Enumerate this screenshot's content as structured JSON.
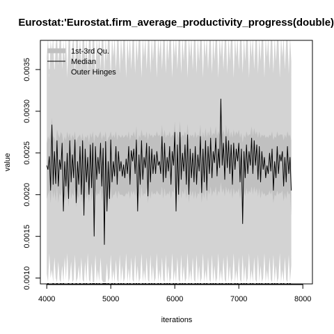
{
  "chart_data": {
    "type": "line",
    "title": "Eurostat:'Eurostat.firm_average_productivity_progress(double)'",
    "xlabel": "iterations",
    "ylabel": "value",
    "xlim": [
      3900,
      8150
    ],
    "ylim": [
      0.00093,
      0.00385
    ],
    "x_ticks": [
      4000,
      5000,
      6000,
      7000,
      8000
    ],
    "x_tick_labels": [
      "4000",
      "5000",
      "6000",
      "7000",
      "8000"
    ],
    "y_ticks": [
      0.001,
      0.0015,
      0.002,
      0.0025,
      0.003,
      0.0035
    ],
    "y_tick_labels": [
      "0.0010",
      "0.0015",
      "0.0020",
      "0.0025",
      "0.0030",
      "0.0035"
    ],
    "x_start": 4000,
    "x_step": 20,
    "legend": {
      "position": "top-left",
      "entries": [
        {
          "label": "1st-3rd Qu.",
          "color": "#c0c0c0",
          "style": "thick-band"
        },
        {
          "label": "Median",
          "color": "#000000",
          "style": "line"
        },
        {
          "label": "Outer Hinges",
          "color": "#d3d3d3",
          "style": "thick-band"
        }
      ]
    },
    "colors": {
      "outer_hinges": "#d3d3d3",
      "quartile_band": "#c0c0c0",
      "median": "#000000",
      "min_marks": "#000000"
    },
    "series": [
      {
        "name": "Median",
        "values": [
          0.00235,
          0.0023,
          0.00246,
          0.00205,
          0.00284,
          0.00212,
          0.00252,
          0.00213,
          0.00265,
          0.0021,
          0.00242,
          0.0023,
          0.00262,
          0.0018,
          0.0024,
          0.0021,
          0.0025,
          0.00195,
          0.00265,
          0.00215,
          0.00248,
          0.0022,
          0.00266,
          0.0019,
          0.0024,
          0.00212,
          0.00258,
          0.002,
          0.00265,
          0.00175,
          0.00255,
          0.00215,
          0.00245,
          0.002,
          0.0026,
          0.00208,
          0.00262,
          0.0015,
          0.00258,
          0.00218,
          0.00245,
          0.00225,
          0.00262,
          0.0021,
          0.00256,
          0.0014,
          0.00264,
          0.0018,
          0.0024,
          0.00195,
          0.00266,
          0.00215,
          0.0024,
          0.00222,
          0.00258,
          0.00212,
          0.00252,
          0.00228,
          0.0024,
          0.00222,
          0.00236,
          0.0022,
          0.00243,
          0.00225,
          0.00258,
          0.00212,
          0.00253,
          0.0024,
          0.00255,
          0.00225,
          0.00266,
          0.0018,
          0.00248,
          0.00212,
          0.00265,
          0.00218,
          0.00245,
          0.00232,
          0.00262,
          0.00198,
          0.00258,
          0.00215,
          0.00255,
          0.00225,
          0.00248,
          0.00225,
          0.00252,
          0.00235,
          0.0024,
          0.00225,
          0.0027,
          0.00215,
          0.00262,
          0.0022,
          0.00245,
          0.00228,
          0.00258,
          0.00212,
          0.00252,
          0.00235,
          0.00275,
          0.0018,
          0.0026,
          0.002,
          0.00275,
          0.00218,
          0.0025,
          0.00228,
          0.0026,
          0.00212,
          0.00272,
          0.002,
          0.00255,
          0.0022,
          0.0025,
          0.00215,
          0.00258,
          0.00212,
          0.00248,
          0.00228,
          0.0027,
          0.00202,
          0.00255,
          0.00215,
          0.00265,
          0.00205,
          0.00258,
          0.00225,
          0.00268,
          0.0022,
          0.00252,
          0.00238,
          0.00268,
          0.00222,
          0.00255,
          0.00232,
          0.00315,
          0.00235,
          0.00262,
          0.00218,
          0.0027,
          0.00232,
          0.00265,
          0.00225,
          0.0026,
          0.00212,
          0.00262,
          0.0023,
          0.00255,
          0.0024,
          0.00262,
          0.00215,
          0.00255,
          0.00165,
          0.00252,
          0.0022,
          0.0026,
          0.00225,
          0.00252,
          0.00235,
          0.00268,
          0.00225,
          0.00265,
          0.00235,
          0.0026,
          0.00218,
          0.00258,
          0.00215,
          0.00252,
          0.0023,
          0.00245,
          0.0022,
          0.00235,
          0.00225,
          0.0025,
          0.00228,
          0.00255,
          0.00205,
          0.0024,
          0.0022,
          0.00258,
          0.00225,
          0.00248,
          0.0024,
          0.00252,
          0.0021,
          0.00245,
          0.00215,
          0.00258,
          0.00225,
          0.00245,
          0.00205
        ]
      },
      {
        "name": "1st-3rd Qu. upper",
        "values": [
          0.00262,
          0.0027,
          0.00266,
          0.00275,
          0.00292,
          0.0027,
          0.00268,
          0.00262,
          0.00278,
          0.00272,
          0.00268,
          0.00275,
          0.00272,
          0.00262,
          0.0027,
          0.00265,
          0.00276,
          0.00268,
          0.00274,
          0.00265,
          0.00272,
          0.00268,
          0.00276,
          0.00262,
          0.00268,
          0.0027,
          0.00272,
          0.00265,
          0.00274,
          0.00262,
          0.0027,
          0.00268,
          0.00272,
          0.00262,
          0.00274,
          0.00268,
          0.00276,
          0.00262,
          0.00272,
          0.0027,
          0.00268,
          0.00272,
          0.00276,
          0.00265,
          0.00272,
          0.00268,
          0.00276,
          0.00262,
          0.00268,
          0.0027,
          0.00276,
          0.00268,
          0.00272,
          0.00268,
          0.00276,
          0.00265,
          0.00272,
          0.0027,
          0.00268,
          0.00272,
          0.00268,
          0.0027,
          0.00272,
          0.00268,
          0.00276,
          0.00265,
          0.00272,
          0.0027,
          0.00276,
          0.00268,
          0.00282,
          0.00262,
          0.00272,
          0.00268,
          0.00278,
          0.0027,
          0.00272,
          0.00268,
          0.00276,
          0.00265,
          0.00274,
          0.0027,
          0.00272,
          0.00268,
          0.00272,
          0.0027,
          0.00276,
          0.0027,
          0.00272,
          0.00268,
          0.00284,
          0.00268,
          0.00278,
          0.00268,
          0.00272,
          0.0027,
          0.00276,
          0.00268,
          0.00272,
          0.0027,
          0.00288,
          0.00262,
          0.00276,
          0.00268,
          0.00288,
          0.00268,
          0.00272,
          0.0027,
          0.00276,
          0.00268,
          0.00285,
          0.00265,
          0.00272,
          0.0027,
          0.00272,
          0.00268,
          0.00276,
          0.00268,
          0.00272,
          0.0027,
          0.00284,
          0.00265,
          0.00276,
          0.00268,
          0.0028,
          0.00268,
          0.00276,
          0.0027,
          0.00282,
          0.0027,
          0.00274,
          0.00272,
          0.00282,
          0.0027,
          0.00276,
          0.00272,
          0.003,
          0.00272,
          0.00278,
          0.00268,
          0.00284,
          0.00272,
          0.0028,
          0.00268,
          0.00276,
          0.00268,
          0.00278,
          0.0027,
          0.00276,
          0.00272,
          0.00278,
          0.00268,
          0.00274,
          0.00262,
          0.00272,
          0.00268,
          0.00276,
          0.0027,
          0.00272,
          0.00272,
          0.00282,
          0.0027,
          0.0028,
          0.00272,
          0.00276,
          0.00268,
          0.00276,
          0.00268,
          0.00272,
          0.0027,
          0.00272,
          0.00268,
          0.0027,
          0.00268,
          0.00272,
          0.0027,
          0.00276,
          0.00265,
          0.0027,
          0.00268,
          0.00276,
          0.0027,
          0.00272,
          0.00272,
          0.00272,
          0.00265,
          0.00272,
          0.00268,
          0.00276,
          0.0027,
          0.00272,
          0.00265
        ]
      },
      {
        "name": "1st-3rd Qu. lower",
        "values": [
          0.00195,
          0.002,
          0.00205,
          0.0019,
          0.0021,
          0.00195,
          0.00205,
          0.00192,
          0.0021,
          0.0019,
          0.00202,
          0.00198,
          0.00208,
          0.0018,
          0.002,
          0.00192,
          0.00205,
          0.00185,
          0.0021,
          0.00195,
          0.00202,
          0.00198,
          0.0021,
          0.00185,
          0.002,
          0.00195,
          0.00205,
          0.0019,
          0.0021,
          0.00175,
          0.00205,
          0.00195,
          0.00202,
          0.0019,
          0.00208,
          0.00192,
          0.00208,
          0.0016,
          0.00205,
          0.00198,
          0.00202,
          0.002,
          0.00208,
          0.00192,
          0.00205,
          0.0015,
          0.00208,
          0.0018,
          0.002,
          0.00188,
          0.0021,
          0.00195,
          0.002,
          0.002,
          0.00205,
          0.00195,
          0.00205,
          0.002,
          0.002,
          0.002,
          0.00198,
          0.00198,
          0.00202,
          0.002,
          0.00205,
          0.00195,
          0.00205,
          0.002,
          0.00205,
          0.00198,
          0.0021,
          0.0018,
          0.00202,
          0.00195,
          0.0021,
          0.00198,
          0.00202,
          0.002,
          0.00208,
          0.0019,
          0.00205,
          0.00195,
          0.00205,
          0.002,
          0.00202,
          0.002,
          0.00205,
          0.00202,
          0.002,
          0.002,
          0.0021,
          0.00195,
          0.00208,
          0.00198,
          0.00202,
          0.002,
          0.00205,
          0.00195,
          0.00205,
          0.00202,
          0.00212,
          0.0018,
          0.00208,
          0.0019,
          0.00212,
          0.00195,
          0.00205,
          0.002,
          0.00208,
          0.00195,
          0.0021,
          0.0019,
          0.00205,
          0.00198,
          0.00205,
          0.00195,
          0.00205,
          0.00195,
          0.00202,
          0.002,
          0.0021,
          0.0019,
          0.00205,
          0.00195,
          0.0021,
          0.00192,
          0.00205,
          0.002,
          0.0021,
          0.00198,
          0.00205,
          0.00202,
          0.0021,
          0.00198,
          0.00205,
          0.00202,
          0.00215,
          0.00202,
          0.00208,
          0.00198,
          0.0021,
          0.00202,
          0.00208,
          0.002,
          0.00208,
          0.00195,
          0.00208,
          0.002,
          0.00205,
          0.00202,
          0.00208,
          0.00195,
          0.00205,
          0.0017,
          0.00205,
          0.00198,
          0.00208,
          0.002,
          0.00205,
          0.00202,
          0.0021,
          0.002,
          0.0021,
          0.00202,
          0.00208,
          0.00198,
          0.00208,
          0.00195,
          0.00205,
          0.002,
          0.00202,
          0.00198,
          0.002,
          0.002,
          0.00205,
          0.002,
          0.00205,
          0.0019,
          0.002,
          0.00198,
          0.00205,
          0.002,
          0.00202,
          0.00202,
          0.00205,
          0.00192,
          0.00202,
          0.00195,
          0.00205,
          0.002,
          0.00202,
          0.00175
        ]
      },
      {
        "name": "Outer Hinges upper",
        "values": [
          0.00365,
          0.0039,
          0.0034,
          0.00385,
          0.0037,
          0.0039,
          0.00345,
          0.0038,
          0.0039,
          0.00355,
          0.00385,
          0.0039,
          0.0035,
          0.00385,
          0.0036,
          0.0039,
          0.0034,
          0.00385,
          0.0039,
          0.00355,
          0.0038,
          0.0039,
          0.00345,
          0.00385,
          0.0039,
          0.0036,
          0.0039,
          0.0035,
          0.00385,
          0.0039,
          0.0036,
          0.0039,
          0.00345,
          0.00385,
          0.0039,
          0.0035,
          0.0039,
          0.00385,
          0.0034,
          0.0039,
          0.00365,
          0.0039,
          0.0035,
          0.00385,
          0.0039,
          0.00345,
          0.0039,
          0.0036,
          0.0039,
          0.00385,
          0.0034,
          0.0039,
          0.00365,
          0.0039,
          0.0035,
          0.00385,
          0.0039,
          0.00345,
          0.0039,
          0.0036,
          0.0039,
          0.00385,
          0.0034,
          0.0039,
          0.0036,
          0.0039,
          0.0035,
          0.00385,
          0.0039,
          0.00345,
          0.0039,
          0.0036,
          0.0039,
          0.00385,
          0.0034,
          0.0039,
          0.00365,
          0.0039,
          0.0035,
          0.00385,
          0.0039,
          0.00345,
          0.0039,
          0.0036,
          0.0039,
          0.00385,
          0.0034,
          0.0039,
          0.00365,
          0.0039,
          0.0035,
          0.00385,
          0.0039,
          0.00345,
          0.0039,
          0.0036,
          0.0039,
          0.00385,
          0.0034,
          0.0039,
          0.00365,
          0.0039,
          0.0035,
          0.00385,
          0.0039,
          0.00345,
          0.0039,
          0.0036,
          0.0039,
          0.00385,
          0.0034,
          0.0039,
          0.00365,
          0.0039,
          0.0035,
          0.00385,
          0.0039,
          0.00345,
          0.0039,
          0.0036,
          0.0039,
          0.00385,
          0.0034,
          0.0039,
          0.00365,
          0.0039,
          0.0035,
          0.00385,
          0.0039,
          0.00345,
          0.0039,
          0.0036,
          0.0039,
          0.00385,
          0.0034,
          0.0039,
          0.00365,
          0.0039,
          0.0035,
          0.00385,
          0.0039,
          0.00345,
          0.0039,
          0.0036,
          0.0039,
          0.00385,
          0.0034,
          0.0039,
          0.00365,
          0.0039,
          0.0035,
          0.00385,
          0.0039,
          0.00345,
          0.0039,
          0.0036,
          0.0039,
          0.00385,
          0.0034,
          0.0039,
          0.00365,
          0.0039,
          0.0035,
          0.00385,
          0.0039,
          0.00345,
          0.0039,
          0.0036,
          0.0039,
          0.00385,
          0.0034,
          0.0039,
          0.00365,
          0.0039,
          0.0035,
          0.00385,
          0.0039,
          0.00345,
          0.0039,
          0.0036,
          0.0039,
          0.00385,
          0.0034,
          0.0039,
          0.00365,
          0.0039,
          0.0035,
          0.00385,
          0.0039,
          0.00345,
          0.0039,
          0.0036,
          0.0039,
          0.00385,
          0.0034,
          0.0039,
          0.00365,
          0.0039
        ]
      },
      {
        "name": "Outer Hinges lower",
        "values": [
          0.00105,
          0.00095,
          0.0013,
          0.001,
          0.0011,
          0.00095,
          0.00125,
          0.001,
          0.00095,
          0.0012,
          0.00098,
          0.00095,
          0.00115,
          0.00095,
          0.00125,
          0.00098,
          0.0013,
          0.00095,
          0.001,
          0.0012,
          0.00095,
          0.00098,
          0.00128,
          0.00095,
          0.001,
          0.00115,
          0.00095,
          0.00125,
          0.00098,
          0.00095,
          0.0012,
          0.00095,
          0.0013,
          0.00098,
          0.00095,
          0.00118,
          0.00095,
          0.00095,
          0.00128,
          0.00095,
          0.0011,
          0.00095,
          0.00125,
          0.00098,
          0.00095,
          0.00095,
          0.00095,
          0.00118,
          0.00095,
          0.001,
          0.00128,
          0.00095,
          0.0011,
          0.00095,
          0.00122,
          0.00098,
          0.00095,
          0.00128,
          0.00095,
          0.00115,
          0.00095,
          0.001,
          0.0013,
          0.00095,
          0.00112,
          0.00095,
          0.00125,
          0.00098,
          0.00095,
          0.00128,
          0.00095,
          0.00115,
          0.00095,
          0.001,
          0.0013,
          0.00095,
          0.0011,
          0.00095,
          0.00125,
          0.00098,
          0.00095,
          0.00128,
          0.00095,
          0.00115,
          0.00095,
          0.001,
          0.0013,
          0.00095,
          0.0011,
          0.00095,
          0.00125,
          0.00098,
          0.00095,
          0.00128,
          0.00095,
          0.00115,
          0.00095,
          0.001,
          0.0013,
          0.00095,
          0.0011,
          0.00095,
          0.00125,
          0.00098,
          0.00095,
          0.00128,
          0.00095,
          0.00115,
          0.00095,
          0.001,
          0.0013,
          0.00095,
          0.0011,
          0.00095,
          0.00125,
          0.00098,
          0.00095,
          0.00128,
          0.00095,
          0.00115,
          0.00095,
          0.001,
          0.0013,
          0.00095,
          0.0011,
          0.00095,
          0.00125,
          0.00098,
          0.00095,
          0.00128,
          0.00095,
          0.00115,
          0.00095,
          0.001,
          0.0013,
          0.00095,
          0.0011,
          0.00095,
          0.00125,
          0.00098,
          0.00095,
          0.00128,
          0.00095,
          0.00115,
          0.00095,
          0.001,
          0.0013,
          0.00095,
          0.0011,
          0.00095,
          0.00125,
          0.00098,
          0.00095,
          0.00128,
          0.00095,
          0.00115,
          0.00095,
          0.001,
          0.0013,
          0.00095,
          0.0011,
          0.00095,
          0.00125,
          0.00098,
          0.00095,
          0.00128,
          0.00095,
          0.00115,
          0.00095,
          0.001,
          0.0013,
          0.00095,
          0.0011,
          0.00095,
          0.00125,
          0.00098,
          0.00095,
          0.00128,
          0.00095,
          0.00115,
          0.00095,
          0.001,
          0.0013,
          0.00095,
          0.0011,
          0.00095,
          0.00125,
          0.00098,
          0.00095,
          0.00128,
          0.00095,
          0.00115,
          0.00095,
          0.001,
          0.0013,
          0.00095,
          0.0011,
          0.00095
        ]
      }
    ]
  }
}
